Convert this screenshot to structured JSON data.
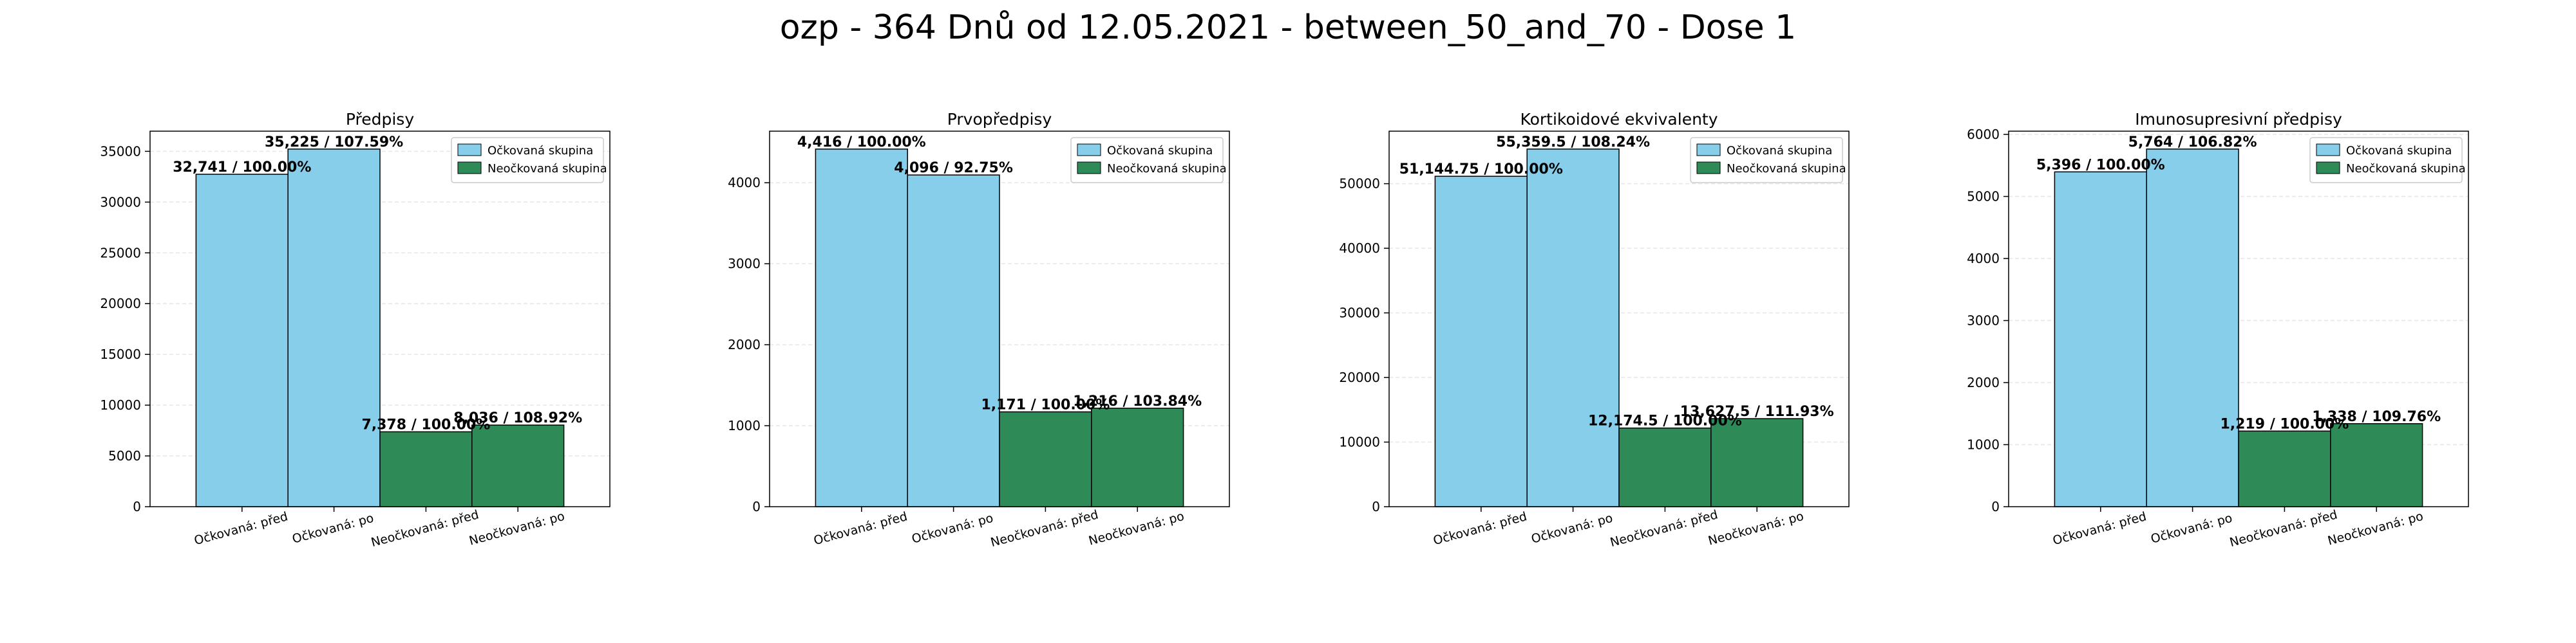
{
  "figure_title": "ozp - 364 Dnů od 12.05.2021 - between_50_and_70 - Dose 1",
  "colors": {
    "vaccinated": "#87ceeb",
    "unvaccinated": "#2e8b57",
    "edge": "#000000",
    "grid": "#e6e6e6"
  },
  "chart_data": [
    {
      "type": "bar",
      "title": "Předpisy",
      "categories": [
        "Očkovaná: před",
        "Očkovaná: po",
        "Neočkovaná: před",
        "Neočkovaná: po"
      ],
      "values": [
        32741,
        35225,
        7378,
        8036
      ],
      "value_labels": [
        "32,741 / 100.00%",
        "35,225 / 107.59%",
        "7,378 / 100.00%",
        "8,036 / 108.92%"
      ],
      "groups": [
        "vaccinated",
        "vaccinated",
        "unvaccinated",
        "unvaccinated"
      ],
      "ylim": [
        0,
        36986
      ],
      "yticks": [
        0,
        5000,
        10000,
        15000,
        20000,
        25000,
        30000,
        35000
      ],
      "xlabel": "",
      "ylabel": "",
      "legend": [
        "Očkovaná skupina",
        "Neočkovaná skupina"
      ],
      "legend_position": "top-right",
      "grid": true
    },
    {
      "type": "bar",
      "title": "Prvopředpisy",
      "categories": [
        "Očkovaná: před",
        "Očkovaná: po",
        "Neočkovaná: před",
        "Neočkovaná: po"
      ],
      "values": [
        4416,
        4096,
        1171,
        1216
      ],
      "value_labels": [
        "4,416 / 100.00%",
        "4,096 / 92.75%",
        "1,171 / 100.00%",
        "1,216 / 103.84%"
      ],
      "groups": [
        "vaccinated",
        "vaccinated",
        "unvaccinated",
        "unvaccinated"
      ],
      "ylim": [
        0,
        4637
      ],
      "yticks": [
        0,
        1000,
        2000,
        3000,
        4000
      ],
      "xlabel": "",
      "ylabel": "",
      "legend": [
        "Očkovaná skupina",
        "Neočkovaná skupina"
      ],
      "legend_position": "top-right",
      "grid": true
    },
    {
      "type": "bar",
      "title": "Kortikoidové ekvivalenty",
      "categories": [
        "Očkovaná: před",
        "Očkovaná: po",
        "Neočkovaná: před",
        "Neočkovaná: po"
      ],
      "values": [
        51144.75,
        55359.5,
        12174.5,
        13627.5
      ],
      "value_labels": [
        "51,144.75 / 100.00%",
        "55,359.5 / 108.24%",
        "12,174.5 / 100.00%",
        "13,627.5 / 111.93%"
      ],
      "groups": [
        "vaccinated",
        "vaccinated",
        "unvaccinated",
        "unvaccinated"
      ],
      "ylim": [
        0,
        58127
      ],
      "yticks": [
        0,
        10000,
        20000,
        30000,
        40000,
        50000
      ],
      "xlabel": "",
      "ylabel": "",
      "legend": [
        "Očkovaná skupina",
        "Neočkovaná skupina"
      ],
      "legend_position": "top-right",
      "grid": true
    },
    {
      "type": "bar",
      "title": "Imunosupresivní předpisy",
      "categories": [
        "Očkovaná: před",
        "Očkovaná: po",
        "Neočkovaná: před",
        "Neočkovaná: po"
      ],
      "values": [
        5396,
        5764,
        1219,
        1338
      ],
      "value_labels": [
        "5,396 / 100.00%",
        "5,764 / 106.82%",
        "1,219 / 100.00%",
        "1,338 / 109.76%"
      ],
      "groups": [
        "vaccinated",
        "vaccinated",
        "unvaccinated",
        "unvaccinated"
      ],
      "ylim": [
        0,
        6052
      ],
      "yticks": [
        0,
        1000,
        2000,
        3000,
        4000,
        5000,
        6000
      ],
      "xlabel": "",
      "ylabel": "",
      "legend": [
        "Očkovaná skupina",
        "Neočkovaná skupina"
      ],
      "legend_position": "top-right",
      "grid": true
    }
  ]
}
